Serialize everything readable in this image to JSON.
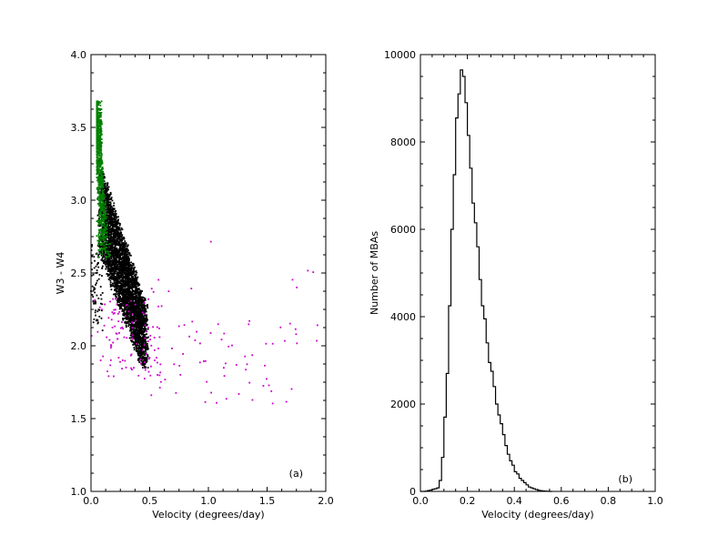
{
  "chart_data": [
    {
      "type": "scatter",
      "panel_label": "(a)",
      "xlabel": "Velocity (degrees/day)",
      "ylabel": "W3 - W4",
      "xlim": [
        0.0,
        2.0
      ],
      "ylim": [
        1.0,
        4.0
      ],
      "x_ticks": [
        0.0,
        0.5,
        1.0,
        1.5,
        2.0
      ],
      "x_tick_labels": [
        "0.0",
        "0.5",
        "1.0",
        "1.5",
        "2.0"
      ],
      "y_ticks": [
        1.0,
        1.5,
        2.0,
        2.5,
        3.0,
        3.5,
        4.0
      ],
      "y_tick_labels": [
        "1.0",
        "1.5",
        "2.0",
        "2.5",
        "3.0",
        "3.5",
        "4.0"
      ],
      "grid": false,
      "series": [
        {
          "color": "#000000",
          "marker": "dot",
          "approx_points": 4000,
          "distribution": {
            "x_range": [
              0.0,
              0.5
            ],
            "y_at_x_low": [
              2.7,
              3.3
            ],
            "y_at_x_high": [
              1.85,
              2.3
            ],
            "y_range": [
              1.85,
              3.35
            ]
          }
        },
        {
          "color": "#008000",
          "marker": "dot",
          "approx_points": 900,
          "distribution": {
            "x_range": [
              0.05,
              0.15
            ],
            "y_range": [
              2.6,
              3.68
            ]
          }
        },
        {
          "color": "#cc00cc",
          "marker": "dot",
          "approx_points": 190,
          "distribution": {
            "x_range": [
              0.0,
              2.0
            ],
            "y_range": [
              1.5,
              2.9
            ]
          }
        }
      ]
    },
    {
      "type": "histogram",
      "panel_label": "(b)",
      "xlabel": "Velocity (degrees/day)",
      "ylabel": "Number of MBAs",
      "xlim": [
        0.0,
        1.0
      ],
      "ylim": [
        0,
        10000
      ],
      "x_ticks": [
        0.0,
        0.2,
        0.4,
        0.6,
        0.8,
        1.0
      ],
      "x_tick_labels": [
        "0.0",
        "0.2",
        "0.4",
        "0.6",
        "0.8",
        "1.0"
      ],
      "y_ticks": [
        0,
        2000,
        4000,
        6000,
        8000,
        10000
      ],
      "y_tick_labels": [
        "0",
        "2000",
        "4000",
        "6000",
        "8000",
        "10000"
      ],
      "grid": false,
      "color": "#000000",
      "bin_width": 0.01,
      "bin_start": 0.0,
      "counts": [
        0,
        0,
        5,
        20,
        30,
        50,
        60,
        80,
        250,
        780,
        1700,
        2700,
        4250,
        6000,
        7250,
        8550,
        9100,
        9650,
        9500,
        8900,
        8150,
        7400,
        6600,
        6150,
        5600,
        4850,
        4250,
        3950,
        3400,
        2950,
        2750,
        2400,
        2000,
        1750,
        1550,
        1300,
        1050,
        850,
        700,
        600,
        450,
        400,
        300,
        250,
        200,
        150,
        100,
        80,
        60,
        40,
        25,
        15,
        10,
        5,
        2,
        0
      ]
    }
  ]
}
